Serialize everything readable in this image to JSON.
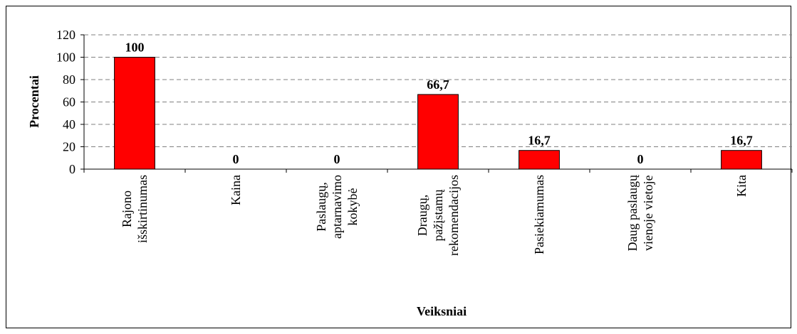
{
  "chart_data": {
    "type": "bar",
    "x_label": "Veiksniai",
    "y_label": "Procentai",
    "categories": [
      [
        "Rajono",
        "išskirtinumas"
      ],
      [
        "Kaina"
      ],
      [
        "Paslaugų,",
        "aptarnavimo",
        "kokybė"
      ],
      [
        "Draugų,",
        "pažįstamų",
        "rekomendacijos"
      ],
      [
        "Pasiekiamumas"
      ],
      [
        "Daug paslaugų",
        "vienoje vietoje"
      ],
      [
        "Kita"
      ]
    ],
    "values": [
      100,
      0,
      0,
      66.7,
      16.7,
      0,
      16.7
    ],
    "value_labels": [
      "100",
      "0",
      "0",
      "66,7",
      "16,7",
      "0",
      "16,7"
    ],
    "color": "#ff0000",
    "ylim": [
      0,
      120
    ],
    "yticks": [
      0,
      20,
      40,
      60,
      80,
      100,
      120
    ],
    "grid": true
  }
}
